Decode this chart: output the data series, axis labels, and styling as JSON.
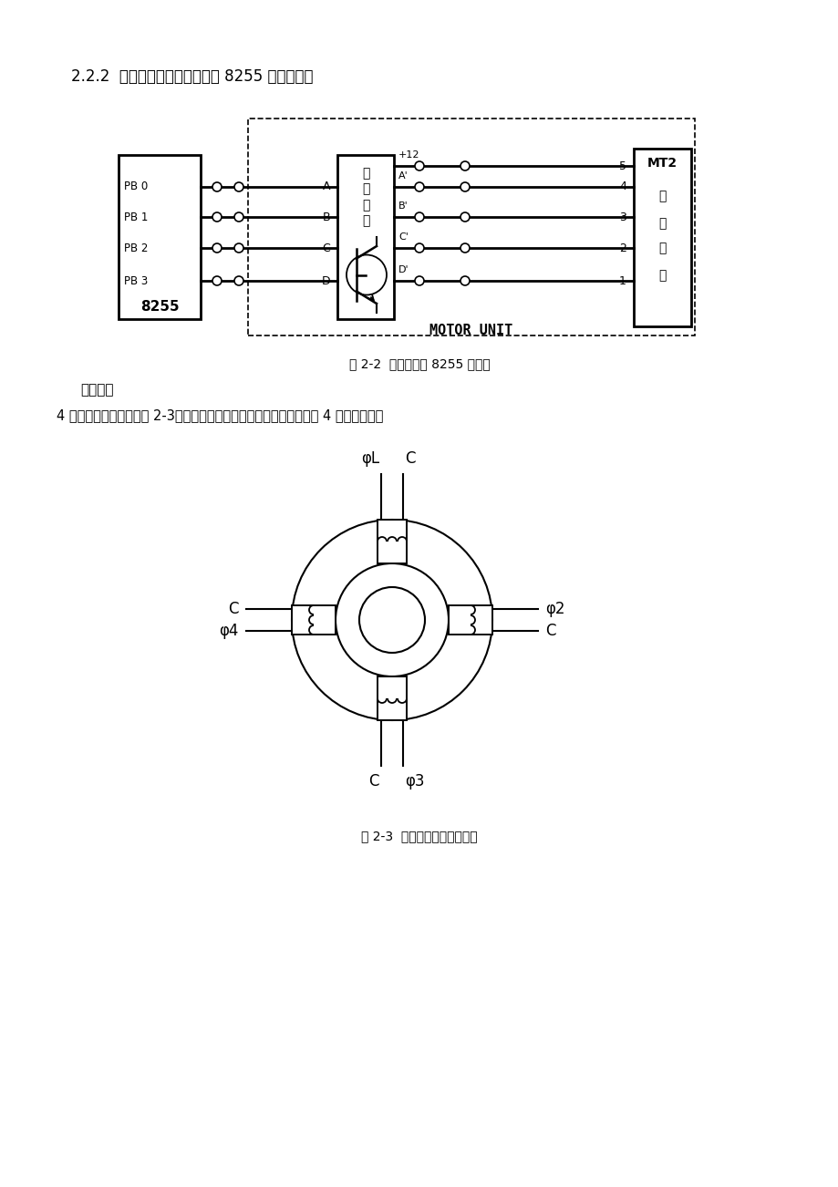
{
  "bg_color": "#ffffff",
  "title_text": "2.2.2  步进电机工作原理以及与 8255 接口的关系",
  "fig2_caption": "图 2-2  步进电机与 8255 连接图",
  "fig3_caption": "图 2-3  电机定子和转子示意图",
  "section_title": "工作原理",
  "body_text": "4 相步进电机示意图见图 2-3，转子由一个永久磁铁构成，定子分别由 4 组绕组构成。",
  "motor_unit_label": "MOTOR UNIT",
  "mt2_label": "MT2",
  "chip_label": "8255",
  "drive_label": "驱动电路",
  "pb_labels": [
    "PB 0",
    "PB 1",
    "PB 2",
    "PB 3"
  ],
  "right_box_labels": [
    "步",
    "进",
    "电",
    "机"
  ],
  "line_labels_left": [
    "A",
    "B",
    "C",
    "D"
  ],
  "line_labels_right": [
    "A'",
    "B'",
    "C'",
    "D'"
  ],
  "right_numbers": [
    "5",
    "4",
    "3",
    "2",
    "1"
  ],
  "plus12_label": "+12"
}
